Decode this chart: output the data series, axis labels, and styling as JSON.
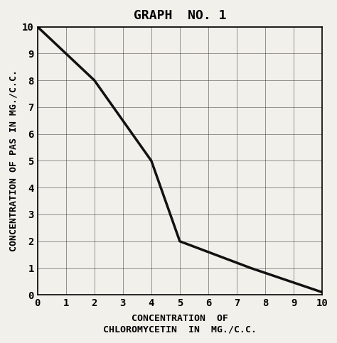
{
  "title": "GRAPH  NO. 1",
  "xlabel_line1": "CONCENTRATION  OF",
  "xlabel_line2": "CHLOROMYCETIN  IN  MG./C.C.",
  "ylabel_text": "CONCENTRATION OF PAS IN MG./C.C.",
  "x_data": [
    0,
    1,
    2,
    4,
    5,
    7.5,
    10
  ],
  "y_data": [
    10,
    9,
    8,
    5,
    2,
    1,
    0.1
  ],
  "xlim": [
    0,
    10
  ],
  "ylim": [
    0,
    10
  ],
  "xticks": [
    0,
    1,
    2,
    3,
    4,
    5,
    6,
    7,
    8,
    9,
    10
  ],
  "yticks": [
    0,
    1,
    2,
    3,
    4,
    5,
    6,
    7,
    8,
    9,
    10
  ],
  "line_color": "#111111",
  "line_width": 2.5,
  "background_color": "#f2f0eb",
  "grid_color": "#333333",
  "title_fontsize": 13,
  "axis_label_fontsize": 9.5,
  "tick_fontsize": 10
}
